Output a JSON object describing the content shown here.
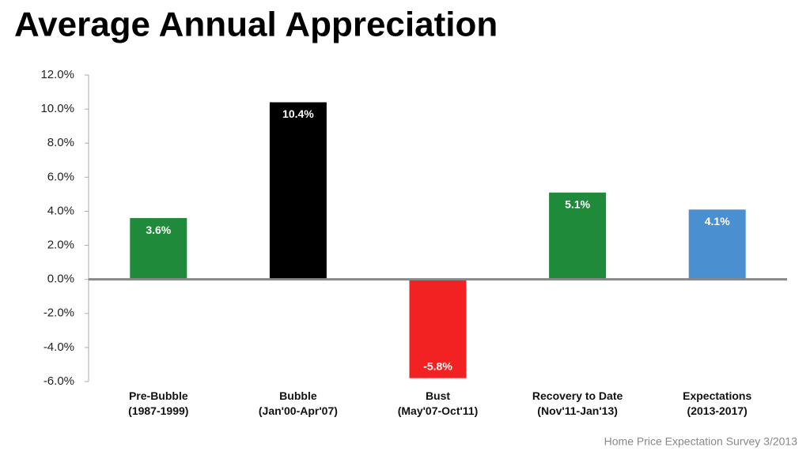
{
  "chart_data": {
    "type": "bar",
    "title": "Average Annual Appreciation",
    "categories": [
      [
        "Pre-Bubble",
        "(1987-1999)"
      ],
      [
        "Bubble",
        "(Jan'00-Apr'07)"
      ],
      [
        "Bust",
        "(May'07-Oct'11)"
      ],
      [
        "Recovery to Date",
        "(Nov'11-Jan'13)"
      ],
      [
        "Expectations",
        "(2013-2017)"
      ]
    ],
    "values": [
      3.6,
      10.4,
      -5.8,
      5.1,
      4.1
    ],
    "value_labels": [
      "3.6%",
      "10.4%",
      "-5.8%",
      "5.1%",
      "4.1%"
    ],
    "colors": [
      "#1e8a3a",
      "#000000",
      "#f22222",
      "#1e8a3a",
      "#4a8fd0"
    ],
    "ylim": [
      -6,
      12
    ],
    "yticks": [
      {
        "value": -6,
        "label": "-6.0%"
      },
      {
        "value": -4,
        "label": "-4.0%"
      },
      {
        "value": -2,
        "label": "-2.0%"
      },
      {
        "value": 0,
        "label": "0.0%"
      },
      {
        "value": 2,
        "label": "2.0%"
      },
      {
        "value": 4,
        "label": "4.0%"
      },
      {
        "value": 6,
        "label": "6.0%"
      },
      {
        "value": 8,
        "label": "8.0%"
      },
      {
        "value": 10,
        "label": "10.0%"
      },
      {
        "value": 12,
        "label": "12.0%"
      }
    ],
    "grid": false,
    "source": "Home Price Expectation Survey 3/2013"
  }
}
